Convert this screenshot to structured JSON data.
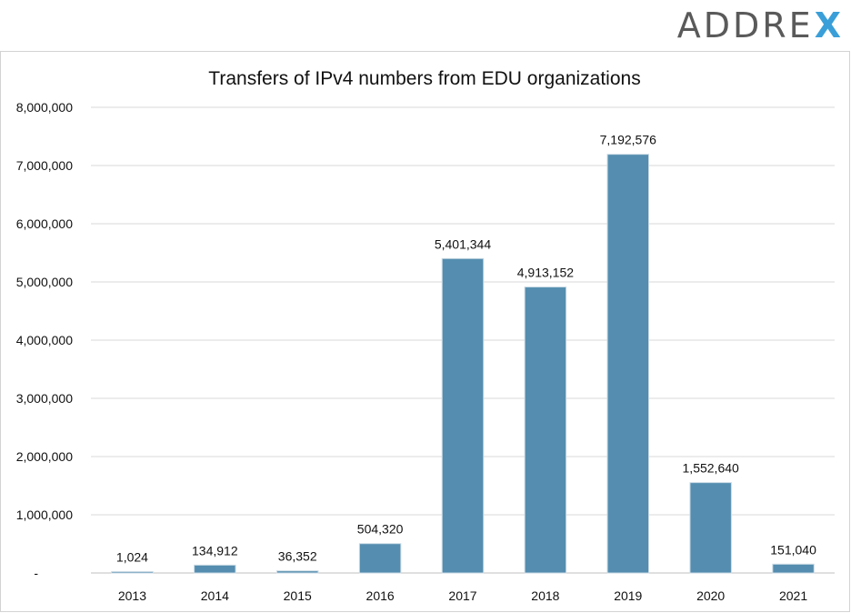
{
  "brand": {
    "name": "ADDRE",
    "mark": "X",
    "mark_color": "#3a9fd8"
  },
  "colors": {
    "bar": "#548daf",
    "grid": "#d9d9d9",
    "axis": "#bfbfbf"
  },
  "chart_data": {
    "type": "bar",
    "title": "Transfers of IPv4 numbers from EDU organizations",
    "xlabel": "",
    "ylabel": "",
    "categories": [
      "2013",
      "2014",
      "2015",
      "2016",
      "2017",
      "2018",
      "2019",
      "2020",
      "2021"
    ],
    "values": [
      1024,
      134912,
      36352,
      504320,
      5401344,
      4913152,
      7192576,
      1552640,
      151040
    ],
    "data_labels": [
      "1,024",
      "134,912",
      "36,352",
      "504,320",
      "5,401,344",
      "4,913,152",
      "7,192,576",
      "1,552,640",
      "151,040"
    ],
    "ylim": [
      0,
      8000000
    ],
    "yticks": [
      0,
      1000000,
      2000000,
      3000000,
      4000000,
      5000000,
      6000000,
      7000000,
      8000000
    ],
    "ytick_labels": [
      "-",
      "1,000,000",
      "2,000,000",
      "3,000,000",
      "4,000,000",
      "5,000,000",
      "6,000,000",
      "7,000,000",
      "8,000,000"
    ],
    "grid": true,
    "legend": "none"
  }
}
